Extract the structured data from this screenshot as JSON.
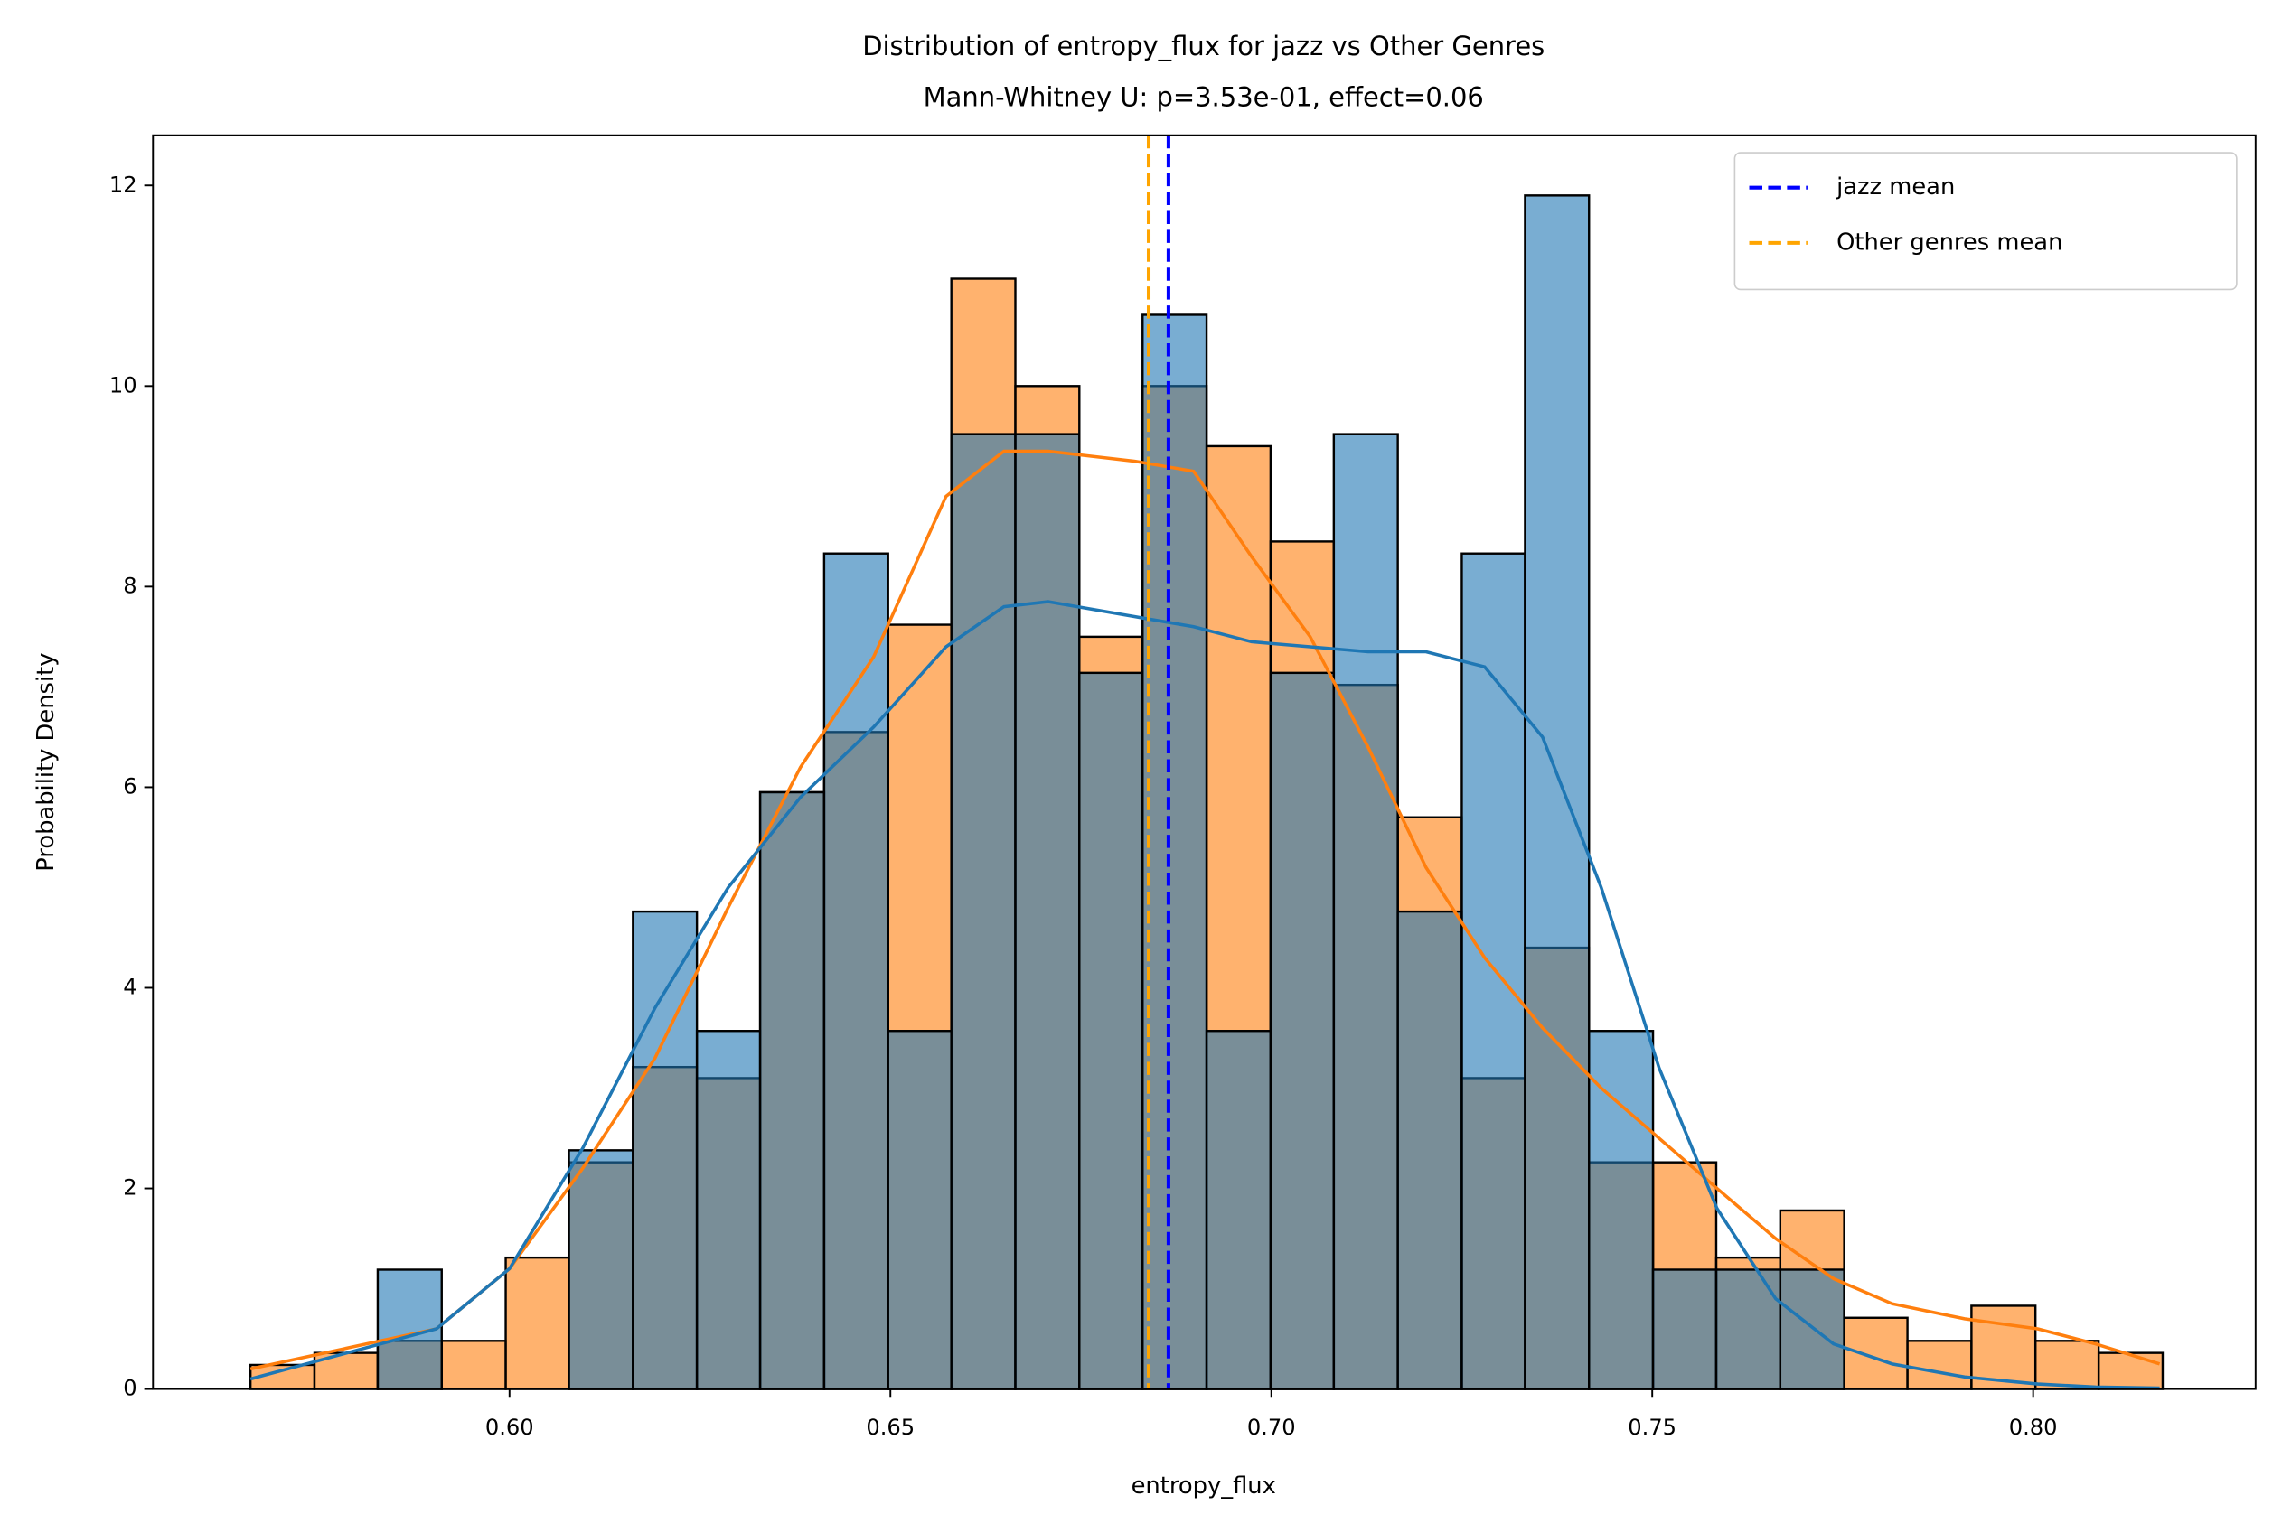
{
  "chart_data": {
    "type": "histogram",
    "title": "Distribution of entropy_flux for jazz vs Other Genres",
    "subtitle": "Mann-Whitney U: p=3.53e-01, effect=0.06",
    "xlabel": "entropy_flux",
    "ylabel": "Probability Density",
    "xlim": [
      0.5532,
      0.8292
    ],
    "ylim": [
      0,
      12.5
    ],
    "xticks": [
      {
        "value": 0.6,
        "label": "0.60"
      },
      {
        "value": 0.65,
        "label": "0.65"
      },
      {
        "value": 0.7,
        "label": "0.70"
      },
      {
        "value": 0.75,
        "label": "0.75"
      },
      {
        "value": 0.8,
        "label": "0.80"
      }
    ],
    "yticks": [
      0,
      2,
      4,
      6,
      8,
      10,
      12
    ],
    "legend": "upper right",
    "bins": [
      0.566,
      0.5744,
      0.5827,
      0.5911,
      0.5995,
      0.6078,
      0.6162,
      0.6246,
      0.6329,
      0.6413,
      0.6497,
      0.658,
      0.6664,
      0.6748,
      0.6831,
      0.6915,
      0.6999,
      0.7082,
      0.7166,
      0.725,
      0.7333,
      0.7417,
      0.7501,
      0.7584,
      0.7668,
      0.7752,
      0.7835,
      0.7919,
      0.8003,
      0.8086,
      0.817
    ],
    "hist_series": [
      {
        "color": "#ff7f0e",
        "values": [
          0.24,
          0.36,
          0.48,
          0.48,
          1.31,
          2.26,
          3.21,
          3.1,
          5.95,
          6.55,
          7.62,
          11.07,
          10.0,
          7.5,
          10.0,
          9.4,
          8.45,
          7.02,
          5.7,
          3.1,
          4.4,
          2.26,
          2.26,
          1.31,
          1.78,
          0.71,
          0.48,
          0.83,
          0.48,
          0.36
        ]
      },
      {
        "color": "#1f77b4",
        "values": [
          0,
          0,
          1.19,
          0,
          0,
          2.38,
          4.76,
          3.57,
          5.95,
          8.33,
          3.57,
          9.52,
          9.52,
          7.14,
          10.71,
          3.57,
          7.14,
          9.52,
          4.76,
          8.33,
          11.9,
          3.57,
          1.19,
          1.19,
          1.19,
          0,
          0,
          0,
          0,
          0
        ]
      }
    ],
    "kde_x": [
      0.566,
      0.5904,
      0.6,
      0.6096,
      0.6191,
      0.6287,
      0.6382,
      0.6478,
      0.6573,
      0.6649,
      0.6707,
      0.6821,
      0.6898,
      0.6974,
      0.7051,
      0.7127,
      0.7203,
      0.728,
      0.7356,
      0.7433,
      0.7509,
      0.7585,
      0.7662,
      0.7738,
      0.7815,
      0.791,
      0.8006,
      0.8082,
      0.8166
    ],
    "kde_series": [
      {
        "color": "#ff7f0e",
        "values": [
          0.2,
          0.6,
          1.2,
          2.2,
          3.3,
          4.8,
          6.2,
          7.3,
          8.9,
          9.35,
          9.35,
          9.25,
          9.15,
          8.3,
          7.5,
          6.4,
          5.2,
          4.3,
          3.6,
          3.0,
          2.5,
          2.0,
          1.5,
          1.1,
          0.85,
          0.7,
          0.6,
          0.45,
          0.25
        ]
      },
      {
        "color": "#1f77b4",
        "values": [
          0.1,
          0.6,
          1.2,
          2.4,
          3.8,
          5.0,
          5.9,
          6.6,
          7.4,
          7.8,
          7.85,
          7.7,
          7.6,
          7.45,
          7.4,
          7.35,
          7.35,
          7.2,
          6.5,
          5.0,
          3.2,
          1.8,
          0.9,
          0.45,
          0.25,
          0.12,
          0.05,
          0.02,
          0.01
        ]
      }
    ],
    "mean_lines": [
      {
        "name": "jazz mean",
        "color": "#0000ff",
        "value": 0.6865
      },
      {
        "name": "Other genres mean",
        "color": "#ffa500",
        "value": 0.6839
      }
    ]
  }
}
